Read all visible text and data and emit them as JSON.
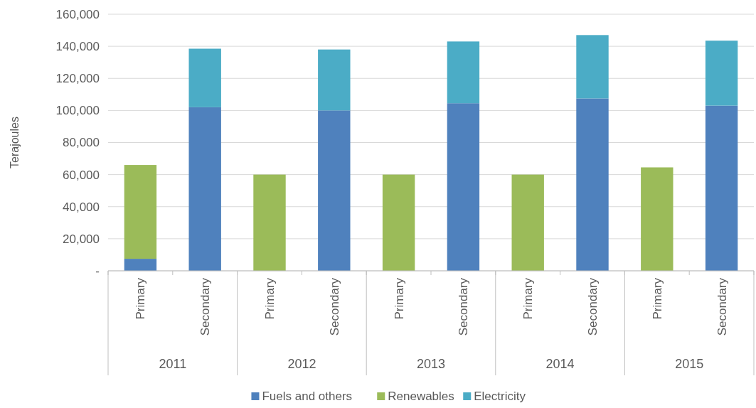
{
  "chart_data": {
    "type": "bar",
    "stacked": true,
    "ylabel": "Terajoules",
    "categories": [
      "Primary",
      "Secondary",
      "Primary",
      "Secondary",
      "Primary",
      "Secondary",
      "Primary",
      "Secondary",
      "Primary",
      "Secondary"
    ],
    "annotations": [
      "2011",
      "2012",
      "2013",
      "2014",
      "2015"
    ],
    "series": [
      {
        "name": "Fuels and others",
        "color": "#4f81bd",
        "values": [
          7500,
          102000,
          0,
          100000,
          0,
          104500,
          0,
          107500,
          0,
          103000
        ]
      },
      {
        "name": "Renewables",
        "color": "#9bbb59",
        "values": [
          58500,
          0,
          60000,
          0,
          60000,
          0,
          60000,
          0,
          64500,
          0
        ]
      },
      {
        "name": "Electricity",
        "color": "#4bacc6",
        "values": [
          0,
          36500,
          0,
          38000,
          0,
          38500,
          0,
          39500,
          0,
          40500
        ]
      }
    ],
    "ylim": [
      0,
      160000
    ],
    "yticks": [
      {
        "value": 0,
        "label": "-"
      },
      {
        "value": 20000,
        "label": "20,000"
      },
      {
        "value": 40000,
        "label": "40,000"
      },
      {
        "value": 60000,
        "label": "60,000"
      },
      {
        "value": 80000,
        "label": "80,000"
      },
      {
        "value": 100000,
        "label": "100,000"
      },
      {
        "value": 120000,
        "label": "120,000"
      },
      {
        "value": 140000,
        "label": "140,000"
      },
      {
        "value": 160000,
        "label": "160,000"
      }
    ],
    "grid": "y",
    "legend": "bottom"
  }
}
